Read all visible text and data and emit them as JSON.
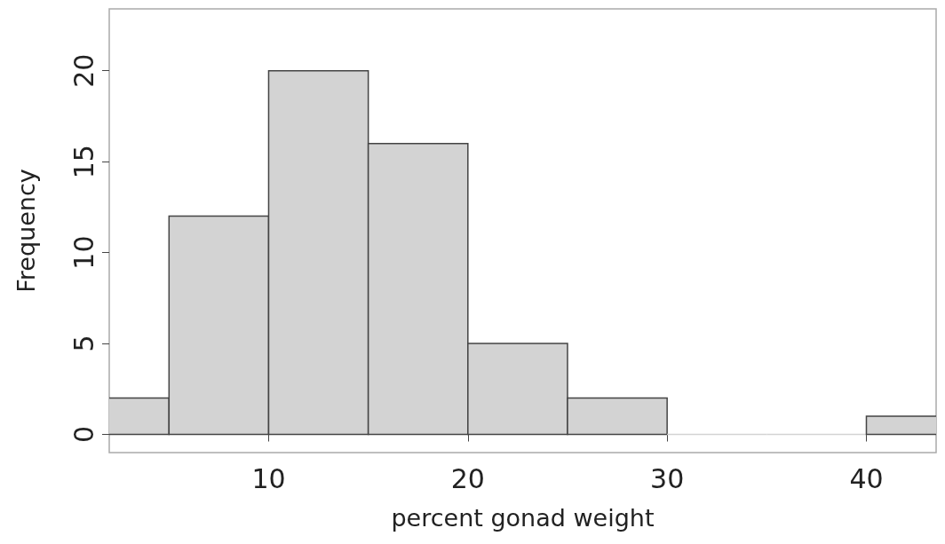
{
  "chart_data": {
    "type": "histogram",
    "xlabel": "percent gonad weight",
    "ylabel": "Frequency",
    "bins": [
      0,
      5,
      10,
      15,
      20,
      25,
      30,
      35,
      40,
      45
    ],
    "values": [
      2,
      12,
      20,
      16,
      5,
      2,
      0,
      0,
      1
    ],
    "color": "#d3d3d3",
    "xlim": [
      2,
      43.5
    ],
    "xticks": [
      10,
      20,
      30,
      40
    ],
    "ylim": [
      -1,
      23.4
    ],
    "yticks": [
      0,
      5,
      10,
      15,
      20
    ],
    "grid": false
  }
}
